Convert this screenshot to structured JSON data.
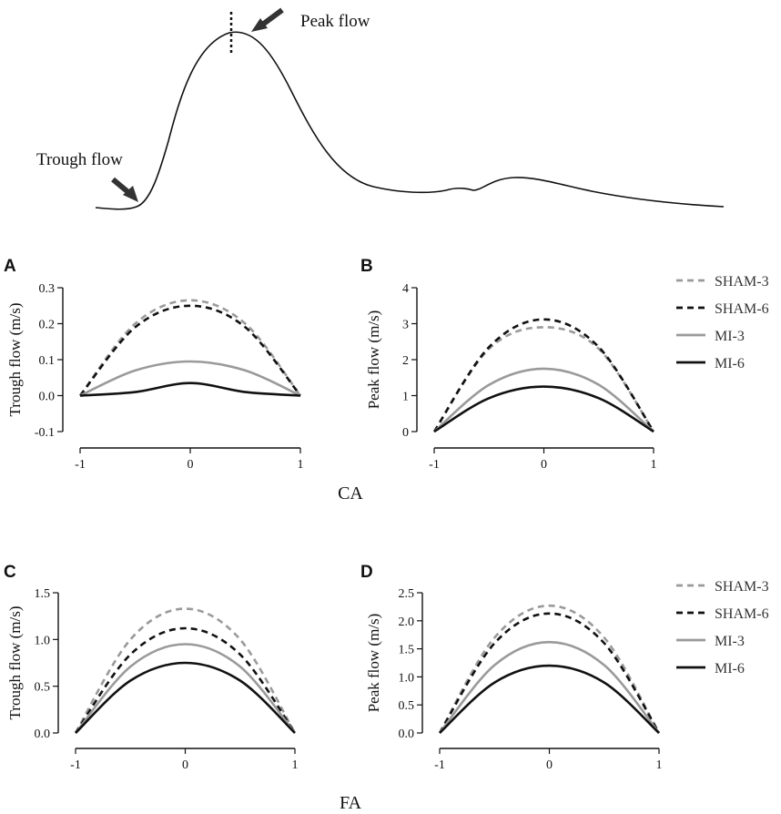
{
  "waveform": {
    "annotations": {
      "peak": "Peak flow",
      "trough": "Trough flow"
    }
  },
  "groups": {
    "top": "CA",
    "bottom": "FA"
  },
  "legend": [
    "SHAM-3",
    "SHAM-6",
    "MI-3",
    "MI-6"
  ],
  "series_styles": {
    "SHAM-3": {
      "color": "#9a9a9a",
      "dash": true
    },
    "SHAM-6": {
      "color": "#111111",
      "dash": true
    },
    "MI-3": {
      "color": "#9a9a9a",
      "dash": false
    },
    "MI-6": {
      "color": "#111111",
      "dash": false
    }
  },
  "chart_data": [
    {
      "id": "A",
      "type": "line",
      "group": "CA",
      "title": "",
      "xlabel": "",
      "ylabel": "Trough flow (m/s)",
      "xlim": [
        -1,
        1
      ],
      "ylim": [
        -0.1,
        0.3
      ],
      "xticks": [
        "-1",
        "0",
        "1"
      ],
      "yticks": [
        "-0.1",
        "0.0",
        "0.1",
        "0.2",
        "0.3"
      ],
      "x": [
        -1,
        -0.5,
        0,
        0.5,
        1
      ],
      "series": [
        {
          "name": "SHAM-3",
          "values": [
            0.0,
            0.2,
            0.265,
            0.2,
            0.0
          ]
        },
        {
          "name": "SHAM-6",
          "values": [
            0.0,
            0.19,
            0.25,
            0.19,
            0.0
          ]
        },
        {
          "name": "MI-3",
          "values": [
            0.0,
            0.07,
            0.095,
            0.07,
            0.0
          ]
        },
        {
          "name": "MI-6",
          "values": [
            0.0,
            0.01,
            0.035,
            0.01,
            0.0
          ]
        }
      ]
    },
    {
      "id": "B",
      "type": "line",
      "group": "CA",
      "title": "",
      "xlabel": "",
      "ylabel": "Peak flow (m/s)",
      "xlim": [
        -1,
        1
      ],
      "ylim": [
        0,
        4
      ],
      "xticks": [
        "-1",
        "0",
        "1"
      ],
      "yticks": [
        "0",
        "1",
        "2",
        "3",
        "4"
      ],
      "x": [
        -1,
        -0.5,
        0,
        0.5,
        1
      ],
      "series": [
        {
          "name": "SHAM-3",
          "values": [
            0.0,
            2.3,
            2.9,
            2.3,
            0.0
          ]
        },
        {
          "name": "SHAM-6",
          "values": [
            0.0,
            2.35,
            3.12,
            2.35,
            0.0
          ]
        },
        {
          "name": "MI-3",
          "values": [
            0.0,
            1.3,
            1.75,
            1.3,
            0.0
          ]
        },
        {
          "name": "MI-6",
          "values": [
            0.0,
            0.93,
            1.25,
            0.93,
            0.0
          ]
        }
      ]
    },
    {
      "id": "C",
      "type": "line",
      "group": "FA",
      "title": "",
      "xlabel": "",
      "ylabel": "Trough flow (m/s)",
      "xlim": [
        -1,
        1
      ],
      "ylim": [
        0,
        1.5
      ],
      "xticks": [
        "-1",
        "0",
        "1"
      ],
      "yticks": [
        "0.0",
        "0.5",
        "1.0",
        "1.5"
      ],
      "x": [
        -1,
        -0.5,
        0,
        0.5,
        1
      ],
      "series": [
        {
          "name": "SHAM-3",
          "values": [
            0.0,
            1.0,
            1.33,
            1.0,
            0.0
          ]
        },
        {
          "name": "SHAM-6",
          "values": [
            0.0,
            0.84,
            1.12,
            0.84,
            0.0
          ]
        },
        {
          "name": "MI-3",
          "values": [
            0.0,
            0.71,
            0.95,
            0.71,
            0.0
          ]
        },
        {
          "name": "MI-6",
          "values": [
            0.0,
            0.56,
            0.75,
            0.56,
            0.0
          ]
        }
      ]
    },
    {
      "id": "D",
      "type": "line",
      "group": "FA",
      "title": "",
      "xlabel": "",
      "ylabel": "Peak flow (m/s)",
      "xlim": [
        -1,
        1
      ],
      "ylim": [
        0,
        2.5
      ],
      "xticks": [
        "-1",
        "0",
        "1"
      ],
      "yticks": [
        "0.0",
        "0.5",
        "1.0",
        "1.5",
        "2.0",
        "2.5"
      ],
      "x": [
        -1,
        -0.5,
        0,
        0.5,
        1
      ],
      "series": [
        {
          "name": "SHAM-3",
          "values": [
            0.0,
            1.7,
            2.27,
            1.7,
            0.0
          ]
        },
        {
          "name": "SHAM-6",
          "values": [
            0.0,
            1.6,
            2.13,
            1.6,
            0.0
          ]
        },
        {
          "name": "MI-3",
          "values": [
            0.0,
            1.21,
            1.62,
            1.21,
            0.0
          ]
        },
        {
          "name": "MI-6",
          "values": [
            0.0,
            0.9,
            1.2,
            0.9,
            0.0
          ]
        }
      ]
    }
  ]
}
